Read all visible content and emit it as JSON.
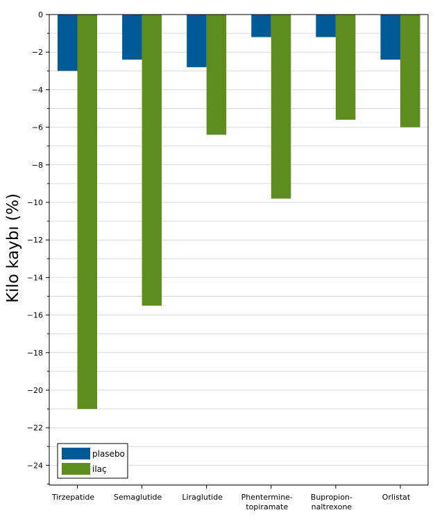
{
  "chart_data": {
    "type": "bar",
    "title": "",
    "xlabel": "",
    "ylabel": "Kilo kaybı (%)",
    "ylim": [
      -25,
      0
    ],
    "yticks": [
      0,
      -2,
      -4,
      -6,
      -8,
      -10,
      -12,
      -14,
      -16,
      -18,
      -20,
      -22,
      -24
    ],
    "ytick_labels": [
      "0",
      "−2",
      "−4",
      "−6",
      "−8",
      "−10",
      "−12",
      "−14",
      "−16",
      "−18",
      "−20",
      "−22",
      "−24"
    ],
    "grid": true,
    "legend_position": "bottom-left",
    "categories": [
      [
        "Tirzepatide"
      ],
      [
        "Semaglutide"
      ],
      [
        "Liraglutide"
      ],
      [
        "Phentermine-",
        "topiramate"
      ],
      [
        "Bupropion-",
        "naltrexone"
      ],
      [
        "Orlistat"
      ]
    ],
    "series": [
      {
        "name": "plasebo",
        "color": "#005a96",
        "values": [
          -3.0,
          -2.4,
          -2.8,
          -1.2,
          -1.2,
          -2.4
        ]
      },
      {
        "name": "ilaç",
        "color": "#5f8c1e",
        "values": [
          -21.0,
          -15.5,
          -6.4,
          -9.8,
          -5.6,
          -6.0
        ]
      }
    ]
  }
}
